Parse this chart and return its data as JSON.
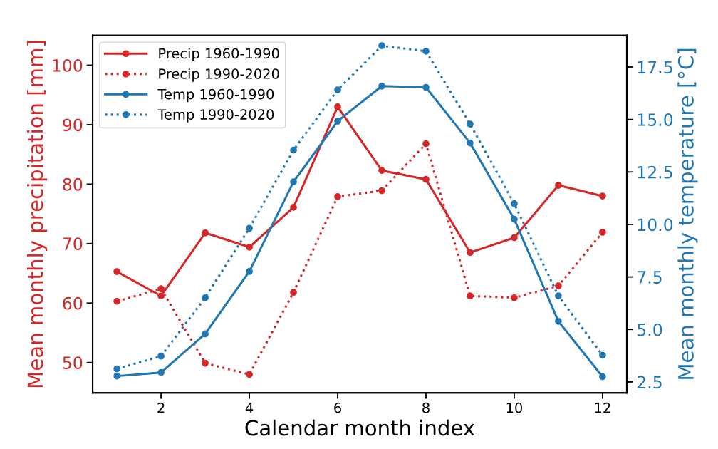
{
  "chart_data": {
    "type": "line",
    "xlabel": "Calendar month index",
    "ylabel": "Mean monthly precipitation [mm]",
    "y2label": "Mean monthly temperature [°C]",
    "x": [
      1,
      2,
      3,
      4,
      5,
      6,
      7,
      8,
      9,
      10,
      11,
      12
    ],
    "series": [
      {
        "name": "Precip 1960-1990",
        "color": "#d62728",
        "line_style": "solid",
        "values": [
          65.3,
          61.2,
          71.8,
          69.4,
          76.1,
          93.0,
          82.3,
          80.8,
          68.5,
          71.0,
          79.8,
          78.0
        ]
      },
      {
        "name": "Precip 1990-2020",
        "color": "#d62728",
        "line_style": "dotted",
        "values": [
          60.3,
          62.4,
          49.9,
          48.0,
          61.8,
          77.9,
          78.9,
          86.8,
          61.2,
          60.9,
          62.9,
          71.9
        ]
      },
      {
        "name": "Temp 1960-1990",
        "color": "#1f77b4",
        "line_style": "solid",
        "axis": "y2",
        "values": [
          2.78,
          2.95,
          4.79,
          7.76,
          12.03,
          14.92,
          16.59,
          16.53,
          13.88,
          10.25,
          5.39,
          2.75
        ]
      },
      {
        "name": "Temp 1990-2020",
        "color": "#1f77b4",
        "line_style": "dotted",
        "axis": "y2",
        "values": [
          3.12,
          3.73,
          6.51,
          9.82,
          13.54,
          16.41,
          18.51,
          18.25,
          14.78,
          10.99,
          6.6,
          3.77
        ]
      }
    ],
    "xlim": [
      0.45,
      12.55
    ],
    "xticks": [
      2,
      4,
      6,
      8,
      10,
      12
    ],
    "ylim": [
      44.9,
      105.0
    ],
    "yticks": [
      50,
      60,
      70,
      80,
      90,
      100
    ],
    "y2lim": [
      1.98,
      19.0
    ],
    "y2ticks": [
      2.5,
      {
        "value": 5,
        "label": "5.0"
      },
      7.5,
      {
        "value": 10,
        "label": "10.0"
      },
      12.5,
      {
        "value": 15,
        "label": "15.0"
      },
      17.5
    ],
    "marker": "circle",
    "legend": "top left",
    "grid": false
  }
}
